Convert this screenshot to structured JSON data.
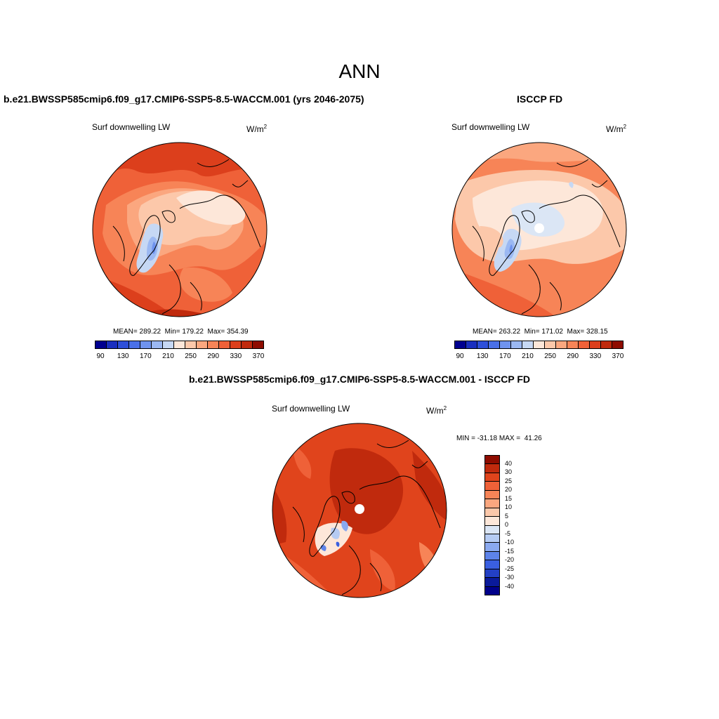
{
  "figure": {
    "season": "ANN"
  },
  "panels": {
    "model": {
      "title": "b.e21.BWSSP585cmip6.f09_g17.CMIP6-SSP5-8.5-WACCM.001 (yrs 2046-2075)",
      "variable": "Surf downwelling LW",
      "units": "W/m",
      "units_sup": "2",
      "stats": "MEAN= 289.22  Min= 179.22  Max= 354.39",
      "mean": 289.22,
      "min": 179.22,
      "max": 354.39
    },
    "obs": {
      "title": "ISCCP FD",
      "variable": "Surf downwelling LW",
      "units": "W/m",
      "units_sup": "2",
      "stats": "MEAN= 263.22  Min= 171.02  Max= 328.15",
      "mean": 263.22,
      "min": 171.02,
      "max": 328.15
    },
    "diff": {
      "title": "b.e21.BWSSP585cmip6.f09_g17.CMIP6-SSP5-8.5-WACCM.001 - ISCCP FD",
      "variable": "Surf downwelling LW",
      "units": "W/m",
      "units_sup": "2",
      "stats": "MIN = -31.18 MAX =  41.26",
      "min": -31.18,
      "max": 41.26
    }
  },
  "colorbar_main": {
    "colors": [
      "#00008f",
      "#1a2fbf",
      "#2e4fd9",
      "#4a70e8",
      "#6f93ee",
      "#9bb8f2",
      "#c6d8f4",
      "#fde7d9",
      "#fcc8aa",
      "#fba77f",
      "#f78457",
      "#ef6138",
      "#dc3f1c",
      "#c02a0d",
      "#8e0c00"
    ],
    "tick_labels": [
      "90",
      "130",
      "170",
      "210",
      "250",
      "290",
      "330",
      "370"
    ]
  },
  "colorbar_diff": {
    "colors": [
      "#8e0c00",
      "#c02a0d",
      "#e0441c",
      "#ef6138",
      "#f78457",
      "#fba77f",
      "#fcc8aa",
      "#fde7d9",
      "#dbe6f5",
      "#b5cbf3",
      "#8aa9ef",
      "#5d83ea",
      "#3a5fe0",
      "#2340c4",
      "#0a1a9a",
      "#00008a"
    ],
    "tick_labels": [
      "40",
      "30",
      "25",
      "20",
      "15",
      "10",
      "5",
      "0",
      "-5",
      "-10",
      "-15",
      "-20",
      "-25",
      "-30",
      "-40"
    ]
  }
}
